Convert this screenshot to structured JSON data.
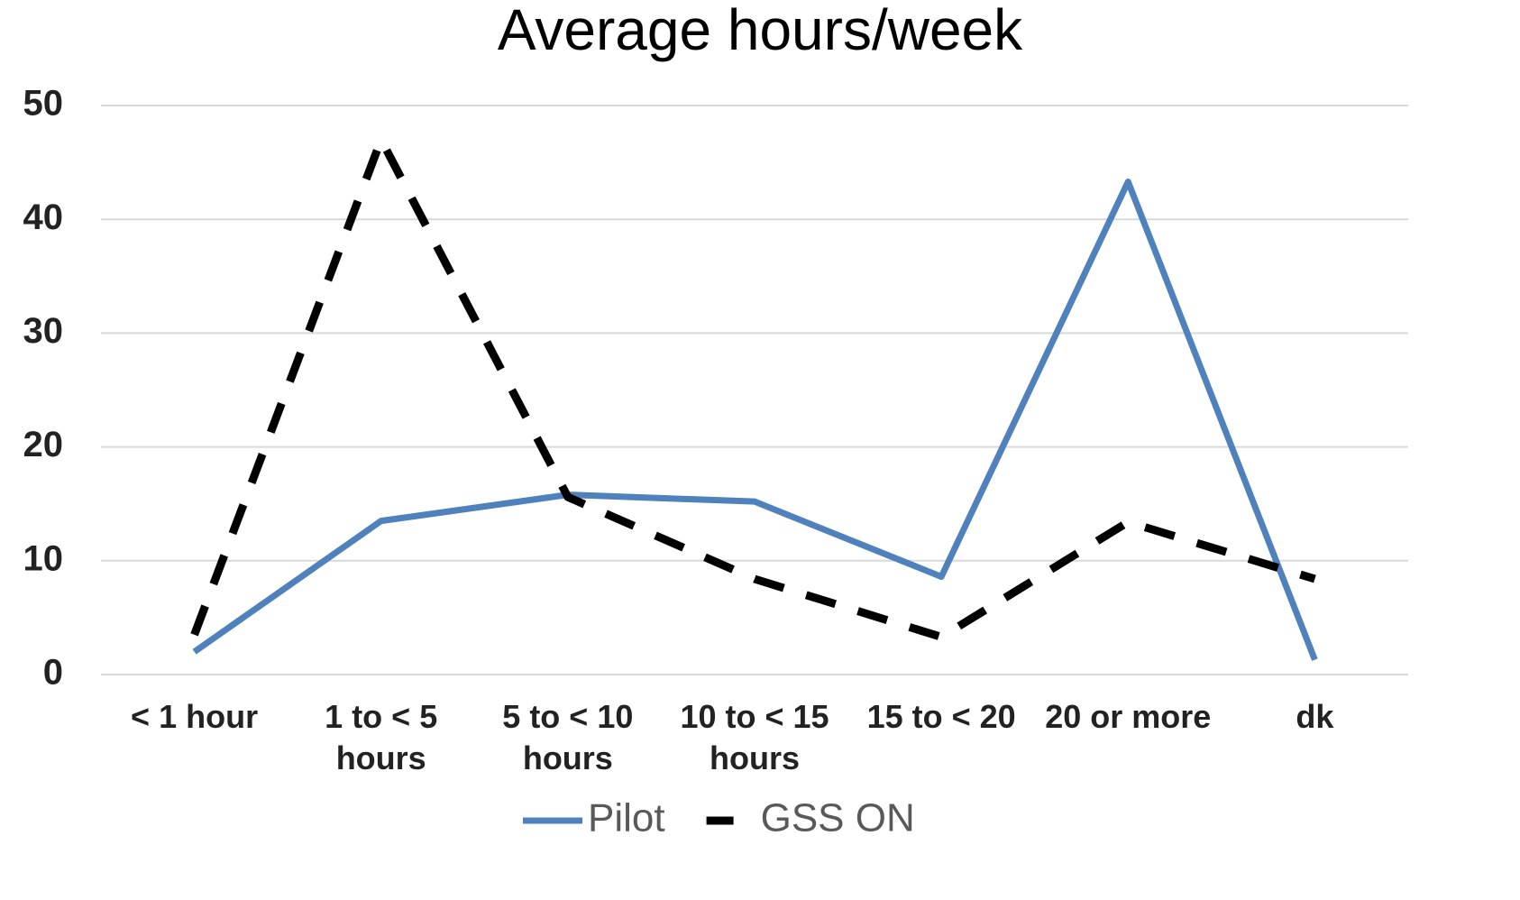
{
  "chart_data": {
    "type": "line",
    "title": "Average hours/week",
    "categories": [
      "< 1 hour",
      "1 to < 5 hours",
      "5 to < 10 hours",
      "10 to < 15 hours",
      "15 to < 20",
      "20 or more",
      "dk"
    ],
    "series": [
      {
        "name": "Pilot",
        "color": "#4f81bd",
        "dash": "solid",
        "values": [
          2,
          13.5,
          15.8,
          15.2,
          8.6,
          43.3,
          1.3
        ]
      },
      {
        "name": "GSS ON",
        "color": "#000000",
        "dash": "dashed",
        "values": [
          3.5,
          47,
          15.6,
          8.4,
          3.3,
          13.4,
          8.4
        ]
      }
    ],
    "ylim": [
      0,
      50
    ],
    "yticks": [
      0,
      10,
      20,
      30,
      40,
      50
    ],
    "grid": true,
    "legend": "bottom"
  }
}
